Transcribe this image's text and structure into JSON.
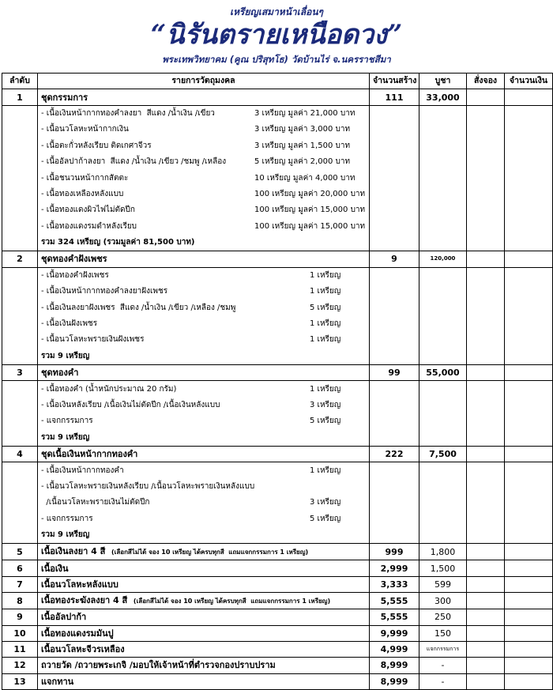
{
  "header": {
    "tagline": "เหรียญเสมาหน้าเลื่อนๆ",
    "title": "“นิรันตรายเหนือดวง”",
    "subtitle": "พระเทพวิทยาคม (คูณ ปริสุทโธ) วัดบ้านไร่ จ.นครราชสีมา"
  },
  "table": {
    "columns": [
      "ลำดับ",
      "รายการวัตถุมงคล",
      "จำนวนสร้าง",
      "บูชา",
      "สั่งจอง",
      "จำนวนเงิน"
    ],
    "rows": [
      {
        "no": "1",
        "item": "ชุดกรรมการ",
        "qty": "111",
        "price": "33,000",
        "details": [
          {
            "name": "- เนื้อเงินหน้ากากทองคำลงยา  สีแดง /น้ำเงิน /เขียว",
            "detail": "3 เหรียญ มูลค่า 21,000 บาท"
          },
          {
            "name": "- เนื้อนวโลหะหน้ากากเงิน",
            "detail": "3 เหรียญ มูลค่า 3,000 บาท"
          },
          {
            "name": "- เนื้อตะกั่วหลังเรียบ ติดเกศาจีวร",
            "detail": "3 เหรียญ มูลค่า 1,500 บาท"
          },
          {
            "name": "- เนื้ออัลปาก้าลงยา  สีแดง /น้ำเงิน /เขียว /ชมพู /เหลือง",
            "detail": "5 เหรียญ มูลค่า 2,000 บาท"
          },
          {
            "name": "- เนื้อชนวนหน้ากากสัตตะ",
            "detail": "10 เหรียญ มูลค่า 4,000 บาท"
          },
          {
            "name": "- เนื้อทองเหลืองหลังแบบ",
            "detail": "100 เหรียญ มูลค่า 20,000 บาท"
          },
          {
            "name": "- เนื้อทองแดงผิวไฟไม่ตัดปีก",
            "detail": "100 เหรียญ มูลค่า 15,000 บาท"
          },
          {
            "name": "- เนื้อทองแดงรมดำหลังเรียบ",
            "detail": "100 เหรียญ มูลค่า 15,000 บาท"
          }
        ],
        "total": "รวม 324 เหรียญ (รวมมูลค่า 81,500 บาท)"
      },
      {
        "no": "2",
        "item": "ชุดทองคำฝังเพชร",
        "qty": "9",
        "price": "120,000",
        "details": [
          {
            "name": "- เนื้อทองคำฝังเพชร",
            "detail": "1 เหรียญ"
          },
          {
            "name": "- เนื้อเงินหน้ากากทองคำลงยาฝังเพชร",
            "detail": "1 เหรียญ"
          },
          {
            "name": "- เนื้อเงินลงยาฝังเพชร  สีแดง /น้ำเงิน /เขียว /เหลือง /ชมพู",
            "detail": "5 เหรียญ"
          },
          {
            "name": "- เนื้อเงินฝังเพชร",
            "detail": "1 เหรียญ"
          },
          {
            "name": "- เนื้อนวโลหะพรายเงินฝังเพชร",
            "detail": "1 เหรียญ"
          }
        ],
        "total": "รวม 9 เหรียญ"
      },
      {
        "no": "3",
        "item": "ชุดทองคำ",
        "qty": "99",
        "price": "55,000",
        "details": [
          {
            "name": "- เนื้อทองคำ (น้ำหนักประมาณ 20 กรัม)",
            "detail": "1 เหรียญ"
          },
          {
            "name": "- เนื้อเงินหลังเรียบ /เนื้อเงินไม่ตัดปีก /เนื้อเงินหลังแบบ",
            "detail": "3 เหรียญ"
          },
          {
            "name": "- แจกกรรมการ",
            "detail": "5 เหรียญ"
          }
        ],
        "total": "รวม 9 เหรียญ"
      },
      {
        "no": "4",
        "item": "ชุดเนื้อเงินหน้ากากทองคำ",
        "qty": "222",
        "price": "7,500",
        "details": [
          {
            "name": "- เนื้อเงินหน้ากากทองคำ",
            "detail": "1 เหรียญ"
          },
          {
            "name": "- เนื้อนวโลหะพรายเงินหลังเรียบ /เนื้อนวโลหะพรายเงินหลังแบบ"
          },
          {
            "name": "  /เนื้อนวโลหะพรายเงินไม่ตัดปีก",
            "detail": "3 เหรียญ"
          },
          {
            "name": "- แจกกรรมการ",
            "detail": "5 เหรียญ"
          }
        ],
        "total": "รวม 9 เหรียญ"
      },
      {
        "no": "5",
        "item": "เนื้อเงินลงยา 4 สี",
        "note": "(เลือกสีไม่ได้ จอง 10 เหรียญ ได้ครบทุกสี  แถมแจกกรรมการ 1 เหรียญ)",
        "qty": "999",
        "price": "1,800"
      },
      {
        "no": "6",
        "item": "เนื้อเงิน",
        "qty": "2,999",
        "price": "1,500"
      },
      {
        "no": "7",
        "item": "เนื้อนวโลหะหลังแบบ",
        "qty": "3,333",
        "price": "599"
      },
      {
        "no": "8",
        "item": "เนื้อทองระฆังลงยา 4 สี",
        "note": "(เลือกสีไม่ได้ จอง 10 เหรียญ ได้ครบทุกสี  แถมแจกกรรมการ 1 เหรียญ)",
        "qty": "5,555",
        "price": "300"
      },
      {
        "no": "9",
        "item": "เนื้ออัลปาก้า",
        "qty": "5,555",
        "price": "250"
      },
      {
        "no": "10",
        "item": "เนื้อทองแดงรมมันปู",
        "qty": "9,999",
        "price": "150"
      },
      {
        "no": "11",
        "item": "เนื้อนวโลหะจีวรเหลือง",
        "qty": "4,999",
        "price": "แจกกรรมการ"
      },
      {
        "no": "12",
        "item": "ถวายวัด /ถวายพระเกจิ /มอบให้เจ้าหน้าที่ตำรวจกองปราบปราม",
        "qty": "8,999",
        "price": "-"
      },
      {
        "no": "13",
        "item": "แจกทาน",
        "qty": "8,999",
        "price": "-"
      }
    ]
  }
}
